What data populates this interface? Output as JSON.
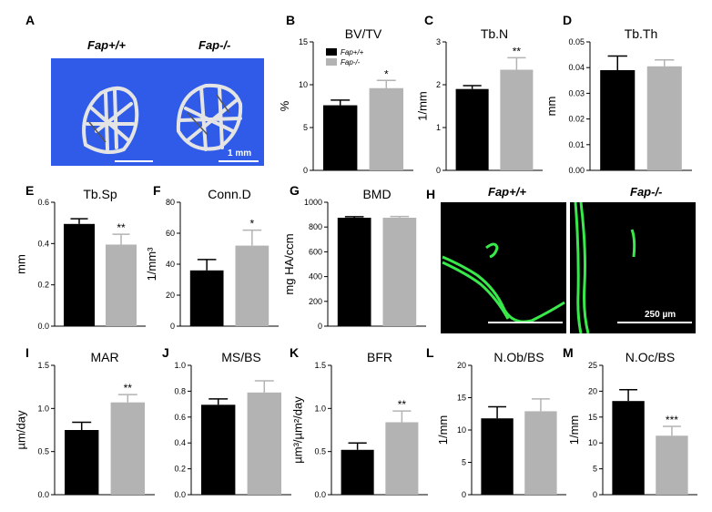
{
  "colors": {
    "wt": "#000000",
    "ko": "#b3b3b3",
    "ct_bg": "#2f5be8",
    "fluor_bg": "#000000",
    "fluor": "#39e84a"
  },
  "panel_A": {
    "letter": "A",
    "wt_label": "Fap+/+",
    "ko_label": "Fap-/-",
    "scale_label": "1 mm"
  },
  "panel_H": {
    "letter": "H",
    "wt_label": "Fap+/+",
    "ko_label": "Fap-/-",
    "scale_label": "250 µm"
  },
  "chart_data": [
    {
      "id": "B",
      "type": "bar",
      "title": "BV/TV",
      "ylabel": "%",
      "ylim": [
        0,
        15
      ],
      "ticks": [
        0,
        5,
        10,
        15
      ],
      "categories": [
        "Fap+/+",
        "Fap-/-"
      ],
      "values": [
        7.6,
        9.6
      ],
      "errors": [
        0.6,
        0.9
      ],
      "sig": "*",
      "legend": [
        "Fap+/+",
        "Fap-/-"
      ]
    },
    {
      "id": "C",
      "type": "bar",
      "title": "Tb.N",
      "ylabel": "1/mm",
      "ylim": [
        0,
        3
      ],
      "ticks": [
        0,
        1,
        2,
        3
      ],
      "categories": [
        "Fap+/+",
        "Fap-/-"
      ],
      "values": [
        1.9,
        2.35
      ],
      "errors": [
        0.08,
        0.28
      ],
      "sig": "**"
    },
    {
      "id": "D",
      "type": "bar",
      "title": "Tb.Th",
      "ylabel": "mm",
      "ylim": [
        0,
        0.05
      ],
      "ticks": [
        "0.00",
        "0.01",
        "0.02",
        "0.03",
        "0.04",
        "0.05"
      ],
      "categories": [
        "Fap+/+",
        "Fap-/-"
      ],
      "values": [
        0.039,
        0.0405
      ],
      "errors": [
        0.0055,
        0.0025
      ],
      "sig": ""
    },
    {
      "id": "E",
      "type": "bar",
      "title": "Tb.Sp",
      "ylabel": "mm",
      "ylim": [
        0,
        0.6
      ],
      "ticks": [
        "0.0",
        "0.2",
        "0.4",
        "0.6"
      ],
      "categories": [
        "Fap+/+",
        "Fap-/-"
      ],
      "values": [
        0.495,
        0.395
      ],
      "errors": [
        0.025,
        0.05
      ],
      "sig": "**"
    },
    {
      "id": "F",
      "type": "bar",
      "title": "Conn.D",
      "ylabel": "1/mm³",
      "ylim": [
        0,
        80
      ],
      "ticks": [
        0,
        20,
        40,
        60,
        80
      ],
      "categories": [
        "Fap+/+",
        "Fap-/-"
      ],
      "values": [
        36,
        52
      ],
      "errors": [
        7,
        10
      ],
      "sig": "*"
    },
    {
      "id": "G",
      "type": "bar",
      "title": "BMD",
      "ylabel": "mg HA/ccm",
      "ylim": [
        0,
        1000
      ],
      "ticks": [
        0,
        200,
        400,
        600,
        800,
        1000
      ],
      "categories": [
        "Fap+/+",
        "Fap-/-"
      ],
      "values": [
        875,
        875
      ],
      "errors": [
        8,
        10
      ],
      "sig": ""
    },
    {
      "id": "I",
      "type": "bar",
      "title": "MAR",
      "ylabel": "µm/day",
      "ylim": [
        0,
        1.5
      ],
      "ticks": [
        "0.0",
        "0.5",
        "1.0",
        "1.5"
      ],
      "categories": [
        "Fap+/+",
        "Fap-/-"
      ],
      "values": [
        0.75,
        1.07
      ],
      "errors": [
        0.09,
        0.09
      ],
      "sig": "**"
    },
    {
      "id": "J",
      "type": "bar",
      "title": "MS/BS",
      "ylabel": "",
      "ylim": [
        0,
        1.0
      ],
      "ticks": [
        "0.0",
        "0.2",
        "0.4",
        "0.6",
        "0.8",
        "1.0"
      ],
      "categories": [
        "Fap+/+",
        "Fap-/-"
      ],
      "values": [
        0.695,
        0.79
      ],
      "errors": [
        0.045,
        0.09
      ],
      "sig": ""
    },
    {
      "id": "K",
      "type": "bar",
      "title": "BFR",
      "ylabel": "µm³/µm²/day",
      "ylim": [
        0,
        1.5
      ],
      "ticks": [
        "0.0",
        "0.5",
        "1.0",
        "1.5"
      ],
      "categories": [
        "Fap+/+",
        "Fap-/-"
      ],
      "values": [
        0.52,
        0.84
      ],
      "errors": [
        0.08,
        0.13
      ],
      "sig": "**"
    },
    {
      "id": "L",
      "type": "bar",
      "title": "N.Ob/BS",
      "ylabel": "1/mm",
      "ylim": [
        0,
        20
      ],
      "ticks": [
        0,
        5,
        10,
        15,
        20
      ],
      "categories": [
        "Fap+/+",
        "Fap-/-"
      ],
      "values": [
        11.8,
        12.9
      ],
      "errors": [
        1.8,
        1.9
      ],
      "sig": ""
    },
    {
      "id": "M",
      "type": "bar",
      "title": "N.Oc/BS",
      "ylabel": "1/mm",
      "ylim": [
        0,
        25
      ],
      "ticks": [
        0,
        5,
        10,
        15,
        20,
        25
      ],
      "categories": [
        "Fap+/+",
        "Fap-/-"
      ],
      "values": [
        18.1,
        11.4
      ],
      "errors": [
        2.2,
        1.8
      ],
      "sig": "***"
    }
  ]
}
